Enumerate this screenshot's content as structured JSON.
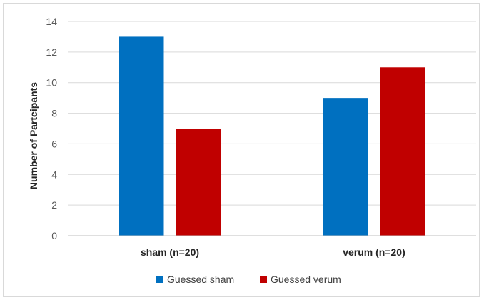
{
  "chart_data": {
    "type": "bar",
    "categories": [
      "sham (n=20)",
      "verum (n=20)"
    ],
    "series": [
      {
        "name": "Guessed sham",
        "values": [
          13,
          9
        ],
        "color": "#0070c0"
      },
      {
        "name": "Guessed verum",
        "values": [
          7,
          11
        ],
        "color": "#c00000"
      }
    ],
    "ylabel": "Number of Partcipants",
    "ylim": [
      0,
      14
    ],
    "yticks": [
      "0",
      "2",
      "4",
      "6",
      "8",
      "10",
      "12",
      "14"
    ],
    "grid": true,
    "legend_position": "bottom"
  }
}
